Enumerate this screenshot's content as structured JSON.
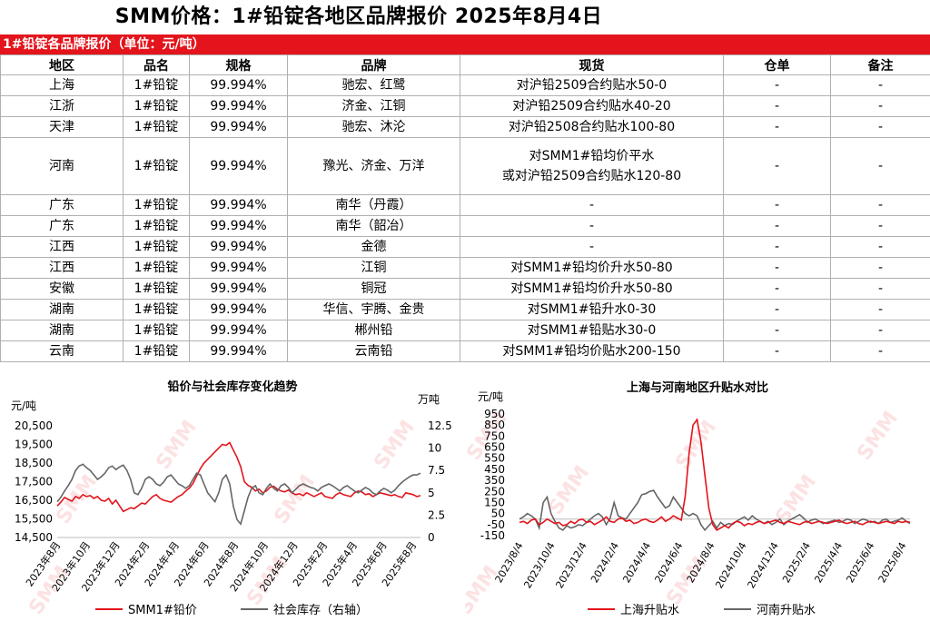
{
  "page": {
    "title": "SMM价格：1#铅锭各地区品牌报价 2025年8月4日"
  },
  "table": {
    "header_bar": "1#铅锭各品牌报价（单位：元/吨）",
    "columns": [
      "地区",
      "品名",
      "规格",
      "品牌",
      "现货",
      "仓单",
      "备注"
    ],
    "rows": [
      [
        "上海",
        "1#铅锭",
        "99.994%",
        "驰宏、红鹭",
        "对沪铅2509合约贴水50-0",
        "-",
        "-"
      ],
      [
        "江浙",
        "1#铅锭",
        "99.994%",
        "济金、江铜",
        "对沪铅2509合约贴水40-20",
        "-",
        "-"
      ],
      [
        "天津",
        "1#铅锭",
        "99.994%",
        "驰宏、沐沦",
        "对沪铅2508合约贴水100-80",
        "-",
        "-"
      ],
      [
        "河南",
        "1#铅锭",
        "99.994%",
        "豫光、济金、万洋",
        "对SMM1#铅均价平水\n或对沪铅2509合约贴水120-80",
        "-",
        "-"
      ],
      [
        "广东",
        "1#铅锭",
        "99.994%",
        "南华（丹霞）",
        "-",
        "-",
        "-"
      ],
      [
        "广东",
        "1#铅锭",
        "99.994%",
        "南华（韶冶）",
        "-",
        "-",
        "-"
      ],
      [
        "江西",
        "1#铅锭",
        "99.994%",
        "金德",
        "-",
        "-",
        "-"
      ],
      [
        "江西",
        "1#铅锭",
        "99.994%",
        "江铜",
        "对SMM1#铅均价升水50-80",
        "-",
        "-"
      ],
      [
        "安徽",
        "1#铅锭",
        "99.994%",
        "铜冠",
        "对SMM1#铅均价升水50-80",
        "-",
        "-"
      ],
      [
        "湖南",
        "1#铅锭",
        "99.994%",
        "华信、宇腾、金贵",
        "对SMM1#铅升水0-30",
        "-",
        "-"
      ],
      [
        "湖南",
        "1#铅锭",
        "99.994%",
        "郴州铅",
        "对SMM1#铅贴水30-0",
        "-",
        "-"
      ],
      [
        "云南",
        "1#铅锭",
        "99.994%",
        "云南铅",
        "对SMM1#铅均价贴水200-150",
        "-",
        "-"
      ]
    ]
  },
  "chart_data": [
    {
      "type": "line",
      "title": "铅价与社会库存变化趋势",
      "ylabel_left": "元/吨",
      "ylabel_right": "万吨",
      "ylim_left": [
        14500,
        20500
      ],
      "yticks_left": [
        "20,500",
        "19,500",
        "18,500",
        "17,500",
        "16,500",
        "15,500",
        "14,500"
      ],
      "ylim_right": [
        0,
        12.5
      ],
      "yticks_right": [
        "12.5",
        "10",
        "7.5",
        "5",
        "2.5",
        "0"
      ],
      "x_ticks": [
        "2023年8月",
        "2023年10月",
        "2023年12月",
        "2024年2月",
        "2024年4月",
        "2024年6月",
        "2024年8月",
        "2024年10月",
        "2024年12月",
        "2025年2月",
        "2025年4月",
        "2025年6月",
        "2025年8月"
      ],
      "series": [
        {
          "name": "SMM1#铅价",
          "axis": "left",
          "color": "#e3141b",
          "values": [
            16200,
            16400,
            16650,
            16550,
            16450,
            16700,
            16600,
            16800,
            16700,
            16750,
            16600,
            16700,
            16500,
            16450,
            16600,
            16300,
            16500,
            16200,
            15900,
            16000,
            16100,
            16050,
            16200,
            16350,
            16300,
            16500,
            16700,
            16800,
            16600,
            16500,
            16450,
            16400,
            16550,
            16700,
            16800,
            17000,
            17150,
            17400,
            17800,
            18200,
            18500,
            18700,
            18900,
            19100,
            19300,
            19500,
            19450,
            19600,
            19200,
            18800,
            18300,
            17500,
            17300,
            17200,
            17000,
            17100,
            16900,
            17000,
            17200,
            17250,
            17100,
            17000,
            16950,
            17050,
            16900,
            16800,
            16850,
            16750,
            16900,
            16800,
            16700,
            16800,
            16900,
            16700,
            16650,
            16600,
            16800,
            16900,
            16800,
            16750,
            16700,
            16900,
            17000,
            16950,
            16800,
            16850,
            16700,
            16800,
            16900,
            16850,
            16800,
            16750,
            16800,
            16700,
            16650,
            16900,
            16850,
            16800,
            16700,
            16750
          ]
        },
        {
          "name": "社会库存（右轴）",
          "axis": "right",
          "color": "#666666",
          "values": [
            4.0,
            4.5,
            5.2,
            5.8,
            6.5,
            7.5,
            8.0,
            8.2,
            7.8,
            7.5,
            7.0,
            6.5,
            6.8,
            7.2,
            7.8,
            8.0,
            7.6,
            7.9,
            8.1,
            7.5,
            6.5,
            5.0,
            4.8,
            5.5,
            6.5,
            6.8,
            6.5,
            6.0,
            5.8,
            6.2,
            6.8,
            7.0,
            6.5,
            6.0,
            5.8,
            5.5,
            5.8,
            6.5,
            7.2,
            7.0,
            6.0,
            5.0,
            4.5,
            4.0,
            5.0,
            6.5,
            7.0,
            6.0,
            3.5,
            2.0,
            1.5,
            3.0,
            4.5,
            5.5,
            5.8,
            5.0,
            4.8,
            5.5,
            6.0,
            5.5,
            5.2,
            5.8,
            6.0,
            5.6,
            5.0,
            5.4,
            5.8,
            6.0,
            5.8,
            5.6,
            5.5,
            5.2,
            5.6,
            5.8,
            6.0,
            5.8,
            5.5,
            5.2,
            5.6,
            5.8,
            5.5,
            5.2,
            5.0,
            5.3,
            5.6,
            5.4,
            5.0,
            4.8,
            5.2,
            5.5,
            5.3,
            5.0,
            5.3,
            5.8,
            6.2,
            6.5,
            6.8,
            7.0,
            7.0,
            7.2
          ]
        }
      ],
      "legend_placement": "bottom"
    },
    {
      "type": "line",
      "title": "上海与河南地区升贴水对比",
      "ylabel": "元/吨",
      "ylim": [
        -150,
        950
      ],
      "yticks": [
        "950",
        "850",
        "750",
        "650",
        "550",
        "450",
        "350",
        "250",
        "150",
        "50",
        "-50",
        "-150"
      ],
      "x_ticks": [
        "2023/8/4",
        "2023/10/4",
        "2023/12/4",
        "2024/2/4",
        "2024/4/4",
        "2024/6/4",
        "2024/8/4",
        "2024/10/4",
        "2024/12/4",
        "2025/2/4",
        "2025/4/4",
        "2025/6/4",
        "2025/8/4"
      ],
      "series": [
        {
          "name": "上海升贴水",
          "color": "#e3141b",
          "values": [
            -30,
            -20,
            -40,
            -10,
            0,
            -50,
            -30,
            0,
            -20,
            -40,
            -30,
            -60,
            -50,
            -20,
            -40,
            -10,
            0,
            -30,
            -20,
            -50,
            -30,
            -10,
            20,
            -20,
            -30,
            0,
            10,
            -20,
            -10,
            -40,
            -30,
            -10,
            0,
            -20,
            -30,
            -10,
            20,
            -20,
            0,
            30,
            10,
            -10,
            200,
            600,
            850,
            900,
            700,
            400,
            100,
            -50,
            -100,
            -80,
            -60,
            -80,
            -40,
            -20,
            -30,
            -60,
            -40,
            -50,
            -30,
            -20,
            -40,
            -30,
            -20,
            -10,
            -30,
            -40,
            -20,
            -30,
            -40,
            -50,
            -30,
            -20,
            -40,
            -30,
            -20,
            -30,
            -40,
            -30,
            -20,
            -10,
            -30,
            -40,
            -30,
            -20,
            -40,
            -50,
            -30,
            -20,
            -30,
            -40,
            -30,
            -20,
            -30,
            -40,
            -20,
            -30,
            -20,
            -30
          ]
        },
        {
          "name": "河南升贴水",
          "color": "#666666",
          "values": [
            0,
            20,
            50,
            30,
            0,
            -80,
            150,
            200,
            50,
            -20,
            -80,
            -100,
            -60,
            -80,
            -70,
            -50,
            -60,
            -30,
            0,
            30,
            50,
            20,
            -50,
            10,
            150,
            30,
            10,
            0,
            50,
            100,
            150,
            220,
            230,
            250,
            260,
            200,
            150,
            100,
            120,
            200,
            150,
            100,
            50,
            30,
            50,
            30,
            -50,
            -100,
            -60,
            -20,
            -80,
            -30,
            -60,
            -40,
            -50,
            -20,
            0,
            20,
            -10,
            30,
            0,
            -20,
            -40,
            -20,
            -50,
            -30,
            0,
            -50,
            -20,
            0,
            20,
            40,
            10,
            -30,
            -10,
            0,
            -20,
            -40,
            -30,
            -20,
            -10,
            -30,
            -20,
            0,
            -10,
            -40,
            -20,
            0,
            -10,
            -30,
            -20,
            -40,
            -10,
            0,
            -30,
            -20,
            -10,
            10,
            -20,
            -40
          ]
        }
      ],
      "legend_placement": "bottom"
    }
  ]
}
